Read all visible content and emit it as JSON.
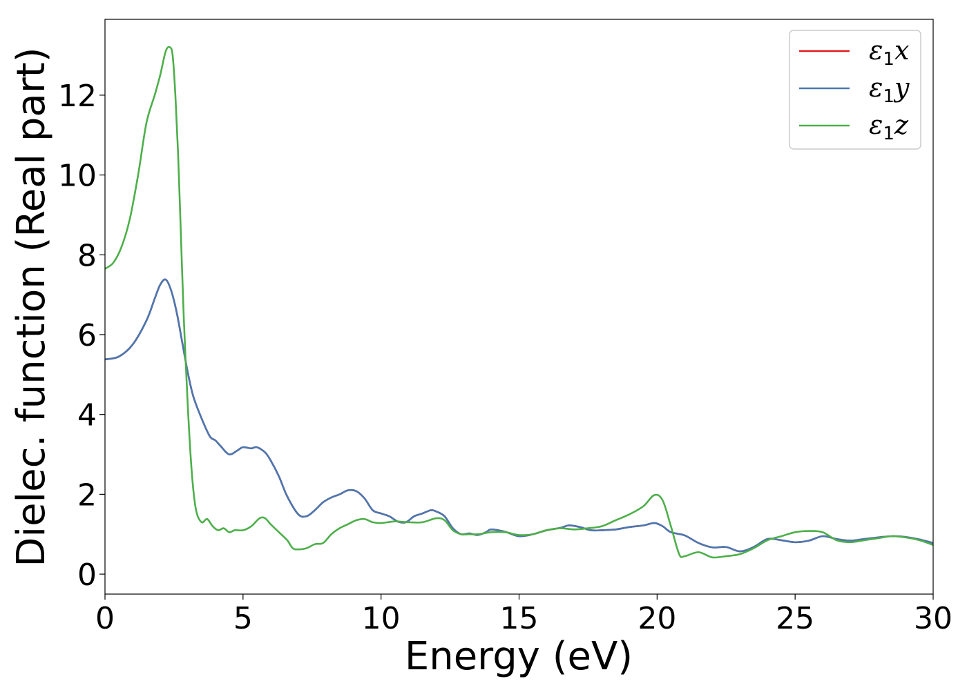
{
  "chart_data": {
    "type": "line",
    "title": "",
    "xlabel": "Energy (eV)",
    "ylabel": "Dielec. function (Real part)",
    "xlim": [
      0,
      30
    ],
    "ylim": [
      -0.5,
      13.9
    ],
    "xticks": [
      0,
      5,
      10,
      15,
      20,
      25,
      30
    ],
    "yticks": [
      0,
      2,
      4,
      6,
      8,
      10,
      12
    ],
    "grid": false,
    "legend_position": "top-right",
    "series": [
      {
        "name": "ε1x",
        "label_base": "ε",
        "label_sub": "1",
        "label_var": "x",
        "color": "#e41a1c",
        "x": [
          0,
          0.5,
          1.0,
          1.5,
          1.8,
          2.0,
          2.2,
          2.4,
          2.6,
          2.8,
          3.0,
          3.2,
          3.5,
          3.8,
          4.0,
          4.2,
          4.5,
          4.8,
          5.0,
          5.3,
          5.5,
          5.8,
          6.0,
          6.3,
          6.6,
          7.0,
          7.3,
          7.6,
          7.9,
          8.2,
          8.5,
          8.8,
          9.1,
          9.4,
          9.7,
          10.0,
          10.3,
          10.6,
          10.9,
          11.2,
          11.5,
          11.8,
          12.0,
          12.3,
          12.6,
          12.9,
          13.2,
          13.5,
          13.8,
          14.0,
          14.5,
          15.0,
          15.5,
          16.0,
          16.5,
          16.8,
          17.2,
          17.6,
          18.0,
          18.5,
          19.0,
          19.5,
          19.9,
          20.2,
          20.5,
          21.0,
          21.5,
          22.0,
          22.5,
          23.0,
          23.5,
          24.0,
          24.5,
          25.0,
          25.5,
          26.0,
          26.5,
          27.0,
          27.5,
          28.0,
          28.5,
          29.0,
          29.5,
          30.0
        ],
        "y": [
          5.38,
          5.45,
          5.75,
          6.35,
          6.9,
          7.25,
          7.38,
          7.1,
          6.55,
          5.8,
          5.05,
          4.45,
          3.9,
          3.45,
          3.35,
          3.2,
          3.0,
          3.1,
          3.18,
          3.15,
          3.18,
          3.05,
          2.85,
          2.45,
          1.95,
          1.5,
          1.45,
          1.6,
          1.8,
          1.92,
          2.0,
          2.1,
          2.08,
          1.9,
          1.6,
          1.52,
          1.45,
          1.32,
          1.3,
          1.45,
          1.52,
          1.6,
          1.57,
          1.45,
          1.15,
          1.0,
          1.02,
          0.98,
          1.05,
          1.12,
          1.06,
          0.95,
          1.0,
          1.1,
          1.16,
          1.22,
          1.18,
          1.1,
          1.1,
          1.12,
          1.18,
          1.22,
          1.28,
          1.2,
          1.05,
          0.97,
          0.78,
          0.67,
          0.68,
          0.57,
          0.68,
          0.88,
          0.85,
          0.8,
          0.84,
          0.95,
          0.88,
          0.84,
          0.88,
          0.92,
          0.95,
          0.93,
          0.87,
          0.78
        ]
      },
      {
        "name": "ε1y",
        "label_base": "ε",
        "label_sub": "1",
        "label_var": "y",
        "color": "#4a78b0",
        "x": [
          0,
          0.5,
          1.0,
          1.5,
          1.8,
          2.0,
          2.2,
          2.4,
          2.6,
          2.8,
          3.0,
          3.2,
          3.5,
          3.8,
          4.0,
          4.2,
          4.5,
          4.8,
          5.0,
          5.3,
          5.5,
          5.8,
          6.0,
          6.3,
          6.6,
          7.0,
          7.3,
          7.6,
          7.9,
          8.2,
          8.5,
          8.8,
          9.1,
          9.4,
          9.7,
          10.0,
          10.3,
          10.6,
          10.9,
          11.2,
          11.5,
          11.8,
          12.0,
          12.3,
          12.6,
          12.9,
          13.2,
          13.5,
          13.8,
          14.0,
          14.5,
          15.0,
          15.5,
          16.0,
          16.5,
          16.8,
          17.2,
          17.6,
          18.0,
          18.5,
          19.0,
          19.5,
          19.9,
          20.2,
          20.5,
          21.0,
          21.5,
          22.0,
          22.5,
          23.0,
          23.5,
          24.0,
          24.5,
          25.0,
          25.5,
          26.0,
          26.5,
          27.0,
          27.5,
          28.0,
          28.5,
          29.0,
          29.5,
          30.0
        ],
        "y": [
          5.38,
          5.45,
          5.75,
          6.35,
          6.9,
          7.25,
          7.38,
          7.1,
          6.55,
          5.8,
          5.05,
          4.45,
          3.9,
          3.45,
          3.35,
          3.2,
          3.0,
          3.1,
          3.18,
          3.15,
          3.18,
          3.05,
          2.85,
          2.45,
          1.95,
          1.5,
          1.45,
          1.6,
          1.8,
          1.92,
          2.0,
          2.1,
          2.08,
          1.9,
          1.6,
          1.52,
          1.45,
          1.32,
          1.3,
          1.45,
          1.52,
          1.6,
          1.57,
          1.45,
          1.15,
          1.0,
          1.02,
          0.98,
          1.05,
          1.12,
          1.06,
          0.95,
          1.0,
          1.1,
          1.16,
          1.22,
          1.18,
          1.1,
          1.1,
          1.12,
          1.18,
          1.22,
          1.28,
          1.2,
          1.05,
          0.97,
          0.78,
          0.67,
          0.68,
          0.57,
          0.68,
          0.88,
          0.85,
          0.8,
          0.84,
          0.95,
          0.88,
          0.84,
          0.88,
          0.92,
          0.95,
          0.93,
          0.87,
          0.78
        ]
      },
      {
        "name": "ε1z",
        "label_base": "ε",
        "label_sub": "1",
        "label_var": "z",
        "color": "#4daf4a",
        "x": [
          0,
          0.3,
          0.6,
          0.9,
          1.2,
          1.5,
          1.8,
          2.0,
          2.2,
          2.35,
          2.45,
          2.55,
          2.65,
          2.75,
          2.85,
          3.0,
          3.15,
          3.3,
          3.5,
          3.7,
          3.9,
          4.1,
          4.3,
          4.5,
          4.7,
          5.0,
          5.3,
          5.6,
          5.8,
          6.0,
          6.3,
          6.6,
          6.8,
          7.0,
          7.3,
          7.6,
          7.9,
          8.2,
          8.5,
          8.8,
          9.1,
          9.4,
          9.7,
          10.0,
          10.5,
          11.0,
          11.5,
          12.0,
          12.3,
          12.6,
          12.9,
          13.2,
          13.5,
          14.0,
          14.5,
          15.0,
          15.5,
          16.0,
          16.5,
          17.0,
          17.5,
          18.0,
          18.5,
          19.0,
          19.5,
          19.9,
          20.2,
          20.5,
          20.8,
          21.0,
          21.5,
          22.0,
          22.5,
          23.0,
          23.5,
          24.0,
          24.5,
          25.0,
          25.5,
          26.0,
          26.5,
          27.0,
          27.5,
          28.0,
          28.5,
          29.0,
          29.5,
          30.0
        ],
        "y": [
          7.65,
          7.8,
          8.2,
          8.9,
          10.0,
          11.3,
          12.0,
          12.5,
          13.1,
          13.2,
          13.0,
          12.0,
          10.5,
          8.5,
          6.5,
          4.2,
          2.5,
          1.6,
          1.3,
          1.38,
          1.2,
          1.1,
          1.15,
          1.05,
          1.1,
          1.1,
          1.2,
          1.4,
          1.4,
          1.25,
          1.05,
          0.85,
          0.65,
          0.62,
          0.65,
          0.75,
          0.78,
          1.0,
          1.15,
          1.25,
          1.35,
          1.38,
          1.3,
          1.28,
          1.32,
          1.3,
          1.3,
          1.4,
          1.35,
          1.1,
          1.0,
          1.0,
          1.0,
          1.05,
          1.05,
          0.98,
          1.0,
          1.1,
          1.15,
          1.12,
          1.15,
          1.2,
          1.35,
          1.5,
          1.7,
          1.98,
          1.85,
          1.2,
          0.5,
          0.45,
          0.55,
          0.42,
          0.45,
          0.5,
          0.65,
          0.85,
          0.95,
          1.05,
          1.08,
          1.05,
          0.85,
          0.8,
          0.85,
          0.9,
          0.95,
          0.92,
          0.85,
          0.73
        ]
      }
    ]
  }
}
